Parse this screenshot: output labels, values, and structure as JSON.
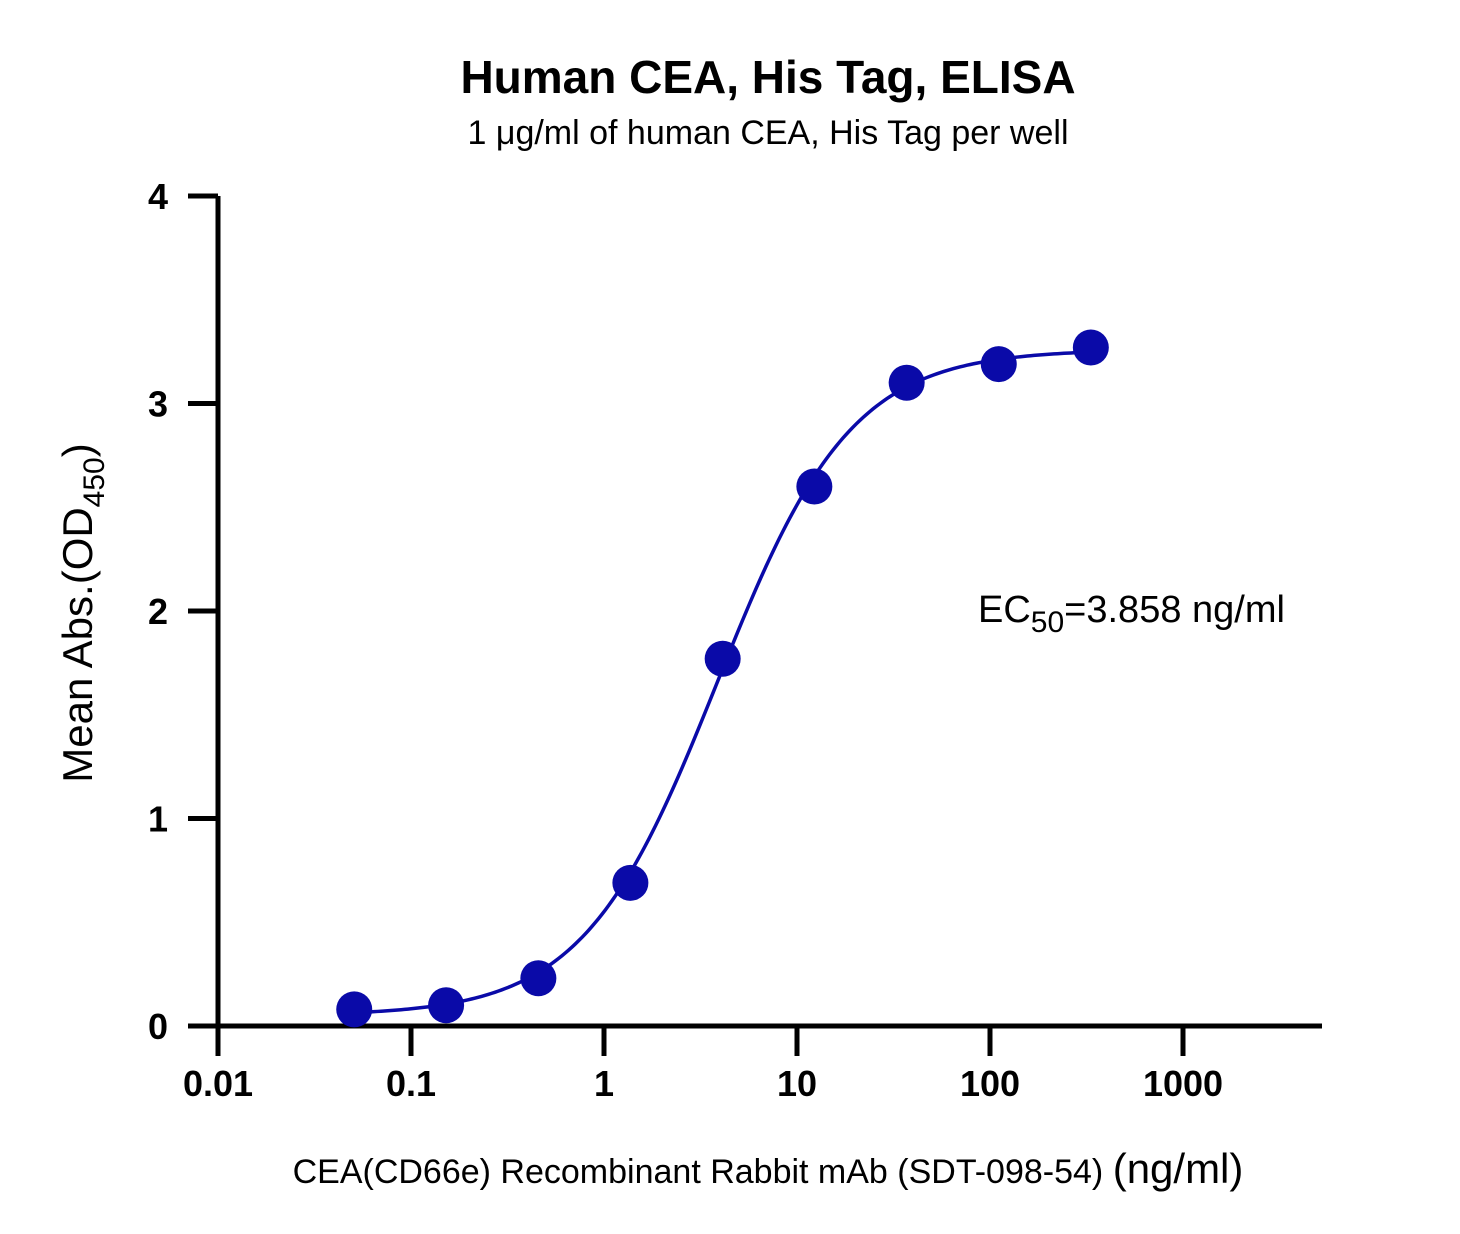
{
  "chart_data": {
    "type": "scatter",
    "title": "Human CEA, His Tag, ELISA",
    "subtitle": "1 μg/ml of human CEA, His Tag per well",
    "xlabel": "CEA(CD66e) Recombinant Rabbit mAb (SDT-098-54)",
    "xlabel_unit": "(ng/ml)",
    "ylabel_main": "Mean Abs.(OD",
    "ylabel_sub": "450",
    "ylabel_close": ")",
    "x_scale": "log",
    "xlim": [
      0.01,
      5000
    ],
    "ylim": [
      0,
      4
    ],
    "x_ticks": [
      0.01,
      0.1,
      1,
      10,
      100,
      1000
    ],
    "x_tick_labels": [
      "0.01",
      "0.1",
      "1",
      "10",
      "100",
      "1000"
    ],
    "y_ticks": [
      0,
      1,
      2,
      3,
      4
    ],
    "y_tick_labels": [
      "0",
      "1",
      "2",
      "3",
      "4"
    ],
    "grid": false,
    "series": [
      {
        "color": "#0a0aa8",
        "x": [
          0.0508,
          0.152,
          0.457,
          1.37,
          4.12,
          12.3,
          37.0,
          111,
          333
        ],
        "y": [
          0.08,
          0.1,
          0.23,
          0.69,
          1.77,
          2.6,
          3.1,
          3.19,
          3.27
        ]
      }
    ],
    "fit": {
      "type": "4PL",
      "bottom": 0.05,
      "top": 3.26,
      "ec50": 3.858,
      "hill": 1.25
    },
    "annotations": {
      "ec50_prefix": "EC",
      "ec50_sub": "50",
      "ec50_value": "=3.858 ng/ml"
    }
  }
}
